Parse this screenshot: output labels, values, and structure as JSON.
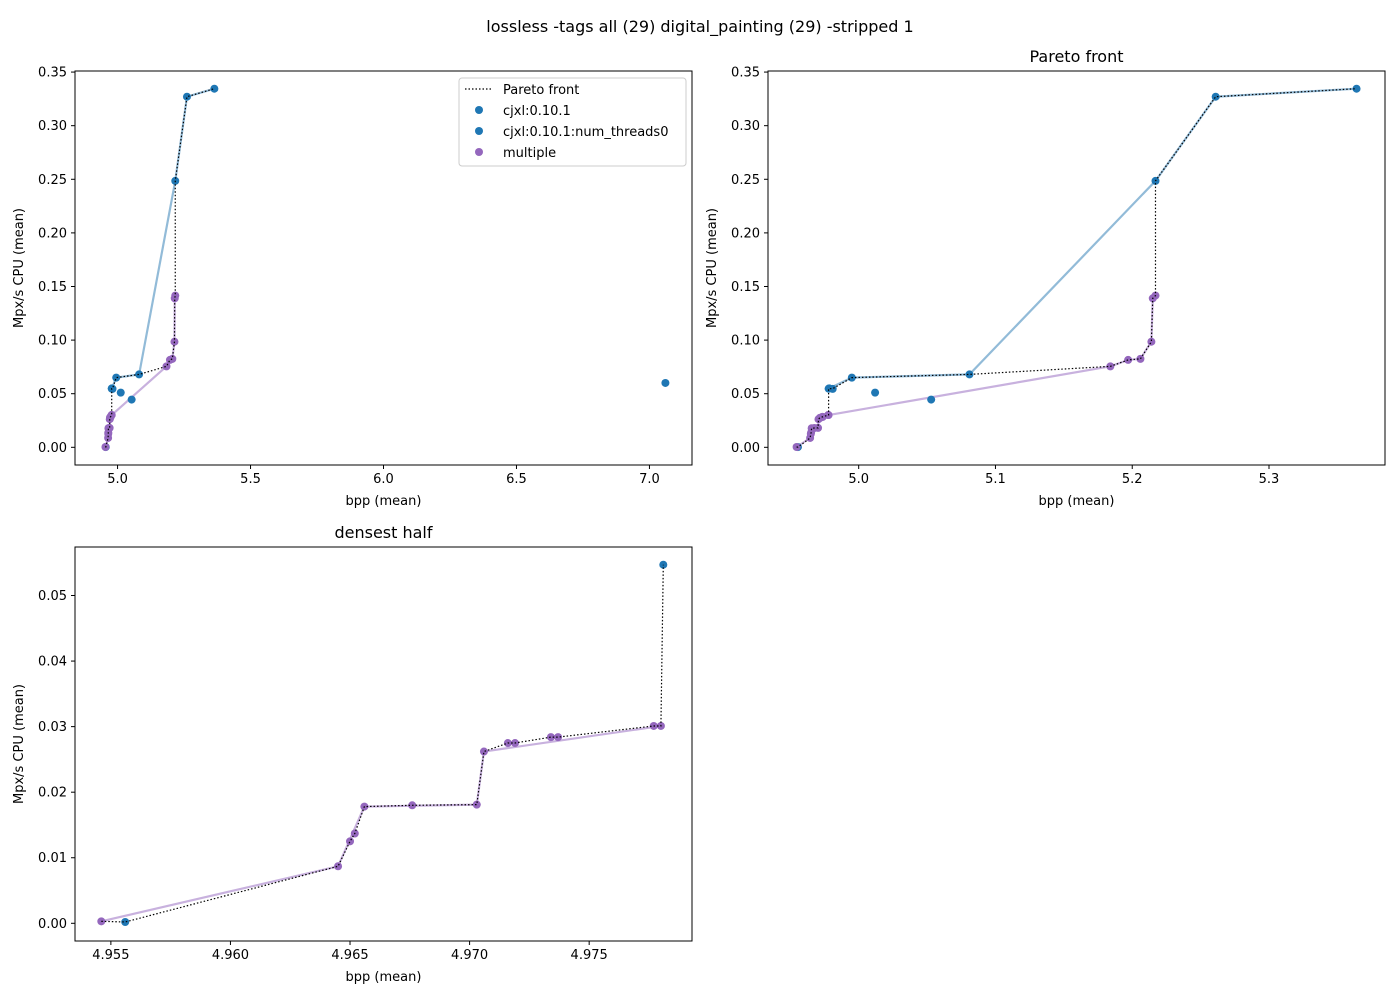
{
  "figure": {
    "title": "lossless -tags all (29) digital_painting (29) -stripped 1"
  },
  "colors": {
    "cjxl": "#1f77b4",
    "cjxl_line": "#92bbd8",
    "multiple": "#9467bd",
    "multiple_line": "#c8b1de",
    "pareto": "#000000"
  },
  "chart_data": [
    {
      "type": "scatter",
      "panel": "overview",
      "title": "",
      "xlabel": "bpp (mean)",
      "ylabel": "Mpx/s CPU (mean)",
      "xlim": [
        4.84,
        7.16
      ],
      "ylim": [
        -0.0165,
        0.351
      ],
      "xticks": [
        "5.0",
        "5.5",
        "6.0",
        "6.5",
        "7.0"
      ],
      "yticks": [
        "0.00",
        "0.05",
        "0.10",
        "0.15",
        "0.20",
        "0.25",
        "0.30",
        "0.35"
      ],
      "legend": {
        "placement": "top-right",
        "entries": [
          "Pareto front",
          "cjxl:0.10.1",
          "cjxl:0.10.1:num_threads0",
          "multiple"
        ]
      },
      "series": [
        {
          "name": "cjxl:0.10.1",
          "color_key": "cjxl",
          "points": [
            [
              4.9556,
              0.0002
            ],
            [
              4.978,
              0.0547
            ],
            [
              4.995,
              0.065
            ],
            [
              5.012,
              0.051
            ],
            [
              5.053,
              0.0445
            ],
            [
              5.081,
              0.068
            ],
            [
              5.217,
              0.2485
            ],
            [
              5.261,
              0.327
            ],
            [
              5.364,
              0.3345
            ],
            [
              7.06,
              0.06
            ]
          ],
          "line": [
            [
              4.978,
              0.0547
            ],
            [
              4.995,
              0.065
            ],
            [
              5.081,
              0.068
            ],
            [
              5.217,
              0.2485
            ],
            [
              5.261,
              0.327
            ],
            [
              5.364,
              0.3345
            ]
          ]
        },
        {
          "name": "cjxl:0.10.1:num_threads0",
          "color_key": "cjxl",
          "points": [
            [
              4.9785,
              0.055
            ],
            [
              4.981,
              0.0545
            ]
          ],
          "line": []
        },
        {
          "name": "multiple",
          "color_key": "multiple",
          "points": [
            [
              4.9546,
              0.0003
            ],
            [
              4.9645,
              0.0087
            ],
            [
              4.965,
              0.0125
            ],
            [
              4.9652,
              0.0137
            ],
            [
              4.9656,
              0.0178
            ],
            [
              4.9676,
              0.018
            ],
            [
              4.9703,
              0.0181
            ],
            [
              4.9706,
              0.0262
            ],
            [
              4.9716,
              0.0275
            ],
            [
              4.9719,
              0.0275
            ],
            [
              4.9734,
              0.0284
            ],
            [
              4.9737,
              0.0284
            ],
            [
              4.9777,
              0.0301
            ],
            [
              4.978,
              0.0301
            ],
            [
              5.184,
              0.0755
            ],
            [
              5.197,
              0.0815
            ],
            [
              5.206,
              0.0825
            ],
            [
              5.214,
              0.0985
            ],
            [
              5.215,
              0.139
            ],
            [
              5.217,
              0.1415
            ]
          ],
          "line": [
            [
              4.9546,
              0.0003
            ],
            [
              4.9645,
              0.0087
            ],
            [
              4.9656,
              0.0178
            ],
            [
              4.9703,
              0.0181
            ],
            [
              4.9706,
              0.0262
            ],
            [
              4.978,
              0.0301
            ],
            [
              5.184,
              0.0755
            ],
            [
              5.197,
              0.0815
            ],
            [
              5.206,
              0.0825
            ],
            [
              5.214,
              0.0985
            ],
            [
              5.215,
              0.139
            ],
            [
              5.217,
              0.1415
            ]
          ]
        }
      ],
      "pareto_front": [
        [
          4.9546,
          0.0003
        ],
        [
          4.9556,
          0.0002
        ],
        [
          4.9645,
          0.0087
        ],
        [
          4.965,
          0.0125
        ],
        [
          4.9652,
          0.0137
        ],
        [
          4.9656,
          0.0178
        ],
        [
          4.9676,
          0.018
        ],
        [
          4.9703,
          0.0181
        ],
        [
          4.9706,
          0.0262
        ],
        [
          4.9716,
          0.0275
        ],
        [
          4.9719,
          0.0275
        ],
        [
          4.9734,
          0.0284
        ],
        [
          4.9737,
          0.0284
        ],
        [
          4.9777,
          0.0301
        ],
        [
          4.978,
          0.0301
        ],
        [
          4.978,
          0.0547
        ],
        [
          4.981,
          0.0547
        ],
        [
          4.995,
          0.065
        ],
        [
          5.081,
          0.068
        ],
        [
          5.184,
          0.0755
        ],
        [
          5.197,
          0.0815
        ],
        [
          5.206,
          0.0825
        ],
        [
          5.214,
          0.0985
        ],
        [
          5.215,
          0.139
        ],
        [
          5.217,
          0.1415
        ],
        [
          5.217,
          0.2485
        ],
        [
          5.261,
          0.327
        ],
        [
          5.364,
          0.3345
        ]
      ]
    },
    {
      "type": "scatter",
      "panel": "pareto",
      "title": "Pareto front",
      "xlabel": "bpp (mean)",
      "ylabel": "Mpx/s CPU (mean)",
      "xlim": [
        4.9337,
        5.3848
      ],
      "ylim": [
        -0.0165,
        0.351
      ],
      "xticks": [
        "5.0",
        "5.1",
        "5.2",
        "5.3"
      ],
      "yticks": [
        "0.00",
        "0.05",
        "0.10",
        "0.15",
        "0.20",
        "0.25",
        "0.30",
        "0.35"
      ],
      "series": [
        {
          "name": "cjxl:0.10.1",
          "color_key": "cjxl",
          "points": [
            [
              4.9556,
              0.0002
            ],
            [
              4.978,
              0.0547
            ],
            [
              4.995,
              0.065
            ],
            [
              5.012,
              0.051
            ],
            [
              5.053,
              0.0445
            ],
            [
              5.081,
              0.068
            ],
            [
              5.217,
              0.2485
            ],
            [
              5.261,
              0.327
            ],
            [
              5.364,
              0.3345
            ]
          ],
          "line": [
            [
              4.978,
              0.0547
            ],
            [
              4.995,
              0.065
            ],
            [
              5.081,
              0.068
            ],
            [
              5.217,
              0.2485
            ],
            [
              5.261,
              0.327
            ],
            [
              5.364,
              0.3345
            ]
          ]
        },
        {
          "name": "cjxl:0.10.1:num_threads0",
          "color_key": "cjxl",
          "points": [
            [
              4.9785,
              0.055
            ],
            [
              4.981,
              0.0545
            ]
          ],
          "line": []
        },
        {
          "name": "multiple",
          "color_key": "multiple",
          "points": [
            [
              4.9546,
              0.0003
            ],
            [
              4.9645,
              0.0087
            ],
            [
              4.965,
              0.0125
            ],
            [
              4.9652,
              0.0137
            ],
            [
              4.9656,
              0.0178
            ],
            [
              4.9676,
              0.018
            ],
            [
              4.9703,
              0.0181
            ],
            [
              4.9706,
              0.0262
            ],
            [
              4.9716,
              0.0275
            ],
            [
              4.9719,
              0.0275
            ],
            [
              4.9734,
              0.0284
            ],
            [
              4.9737,
              0.0284
            ],
            [
              4.9777,
              0.0301
            ],
            [
              4.978,
              0.0301
            ],
            [
              5.184,
              0.0755
            ],
            [
              5.197,
              0.0815
            ],
            [
              5.206,
              0.0825
            ],
            [
              5.214,
              0.0985
            ],
            [
              5.215,
              0.139
            ],
            [
              5.217,
              0.1415
            ]
          ],
          "line": [
            [
              4.9546,
              0.0003
            ],
            [
              4.9645,
              0.0087
            ],
            [
              4.9656,
              0.0178
            ],
            [
              4.9703,
              0.0181
            ],
            [
              4.9706,
              0.0262
            ],
            [
              4.978,
              0.0301
            ],
            [
              5.184,
              0.0755
            ],
            [
              5.197,
              0.0815
            ],
            [
              5.206,
              0.0825
            ],
            [
              5.214,
              0.0985
            ],
            [
              5.215,
              0.139
            ],
            [
              5.217,
              0.1415
            ]
          ]
        }
      ],
      "pareto_front": [
        [
          4.9546,
          0.0003
        ],
        [
          4.9556,
          0.0002
        ],
        [
          4.9645,
          0.0087
        ],
        [
          4.965,
          0.0125
        ],
        [
          4.9652,
          0.0137
        ],
        [
          4.9656,
          0.0178
        ],
        [
          4.9676,
          0.018
        ],
        [
          4.9703,
          0.0181
        ],
        [
          4.9706,
          0.0262
        ],
        [
          4.9716,
          0.0275
        ],
        [
          4.9719,
          0.0275
        ],
        [
          4.9734,
          0.0284
        ],
        [
          4.9737,
          0.0284
        ],
        [
          4.9777,
          0.0301
        ],
        [
          4.978,
          0.0301
        ],
        [
          4.978,
          0.0547
        ],
        [
          4.981,
          0.0547
        ],
        [
          4.995,
          0.065
        ],
        [
          5.081,
          0.068
        ],
        [
          5.184,
          0.0755
        ],
        [
          5.197,
          0.0815
        ],
        [
          5.206,
          0.0825
        ],
        [
          5.214,
          0.0985
        ],
        [
          5.215,
          0.139
        ],
        [
          5.217,
          0.1415
        ],
        [
          5.217,
          0.2485
        ],
        [
          5.261,
          0.327
        ],
        [
          5.364,
          0.3345
        ]
      ]
    },
    {
      "type": "scatter",
      "panel": "densest-half",
      "title": "densest half",
      "xlabel": "bpp (mean)",
      "ylabel": "Mpx/s CPU (mean)",
      "xlim": [
        4.9535,
        4.9793
      ],
      "ylim": [
        -0.0027,
        0.0574
      ],
      "xticks": [
        "4.955",
        "4.960",
        "4.965",
        "4.970",
        "4.975"
      ],
      "yticks": [
        "0.00",
        "0.01",
        "0.02",
        "0.03",
        "0.04",
        "0.05"
      ],
      "series": [
        {
          "name": "cjxl:0.10.1",
          "color_key": "cjxl",
          "points": [
            [
              4.9556,
              0.0002
            ],
            [
              4.9781,
              0.0547
            ]
          ],
          "line": []
        },
        {
          "name": "multiple",
          "color_key": "multiple",
          "points": [
            [
              4.9546,
              0.0003
            ],
            [
              4.9645,
              0.0087
            ],
            [
              4.965,
              0.0125
            ],
            [
              4.9652,
              0.0137
            ],
            [
              4.9656,
              0.0178
            ],
            [
              4.9676,
              0.018
            ],
            [
              4.9703,
              0.0181
            ],
            [
              4.9706,
              0.0262
            ],
            [
              4.9716,
              0.0275
            ],
            [
              4.9719,
              0.0275
            ],
            [
              4.9734,
              0.0284
            ],
            [
              4.9737,
              0.0284
            ],
            [
              4.9777,
              0.0301
            ],
            [
              4.978,
              0.0301
            ]
          ],
          "line": [
            [
              4.9546,
              0.0003
            ],
            [
              4.9645,
              0.0087
            ],
            [
              4.9656,
              0.0178
            ],
            [
              4.9703,
              0.0181
            ],
            [
              4.9706,
              0.0262
            ],
            [
              4.978,
              0.0301
            ]
          ]
        }
      ],
      "pareto_front": [
        [
          4.9546,
          0.0003
        ],
        [
          4.9556,
          0.0002
        ],
        [
          4.9645,
          0.0087
        ],
        [
          4.965,
          0.0125
        ],
        [
          4.9652,
          0.0137
        ],
        [
          4.9656,
          0.0178
        ],
        [
          4.9676,
          0.018
        ],
        [
          4.9703,
          0.0181
        ],
        [
          4.9706,
          0.0262
        ],
        [
          4.9716,
          0.0275
        ],
        [
          4.9719,
          0.0275
        ],
        [
          4.9734,
          0.0284
        ],
        [
          4.9737,
          0.0284
        ],
        [
          4.9777,
          0.0301
        ],
        [
          4.978,
          0.0301
        ],
        [
          4.9781,
          0.0547
        ]
      ]
    }
  ]
}
